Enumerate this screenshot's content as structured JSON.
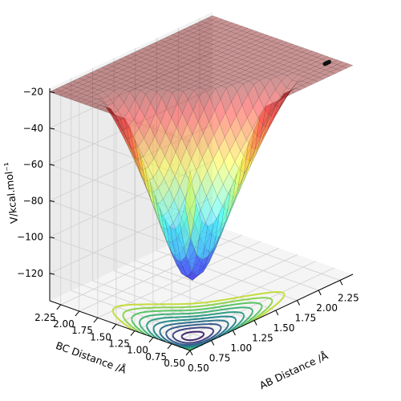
{
  "chart_data": {
    "type": "surface3d",
    "title": "",
    "zlabel": "V/kcal.mol⁻¹",
    "xlabel": "AB Distance /Å",
    "ylabel": "BC Distance /Å",
    "zticks": [
      "−20",
      "−40",
      "−60",
      "−80",
      "−100",
      "−120"
    ],
    "zvalues": [
      -20,
      -40,
      -60,
      -80,
      -100,
      -120
    ],
    "xticks": [
      "0.50",
      "0.75",
      "1.00",
      "1.25",
      "1.50",
      "1.75",
      "2.00",
      "2.25"
    ],
    "xvalues": [
      0.5,
      0.75,
      1.0,
      1.25,
      1.5,
      1.75,
      2.0,
      2.25
    ],
    "yticks": [
      "2.25",
      "2.00",
      "1.75",
      "1.50",
      "1.25",
      "1.00",
      "0.75",
      "0.50"
    ],
    "yvalues": [
      2.25,
      2.0,
      1.75,
      1.5,
      1.25,
      1.0,
      0.75,
      0.5
    ],
    "xlim": [
      0.5,
      2.4
    ],
    "ylim": [
      0.5,
      2.4
    ],
    "zlim": [
      -135,
      -18
    ],
    "surface_function": "LEPS-like potential energy surface (truncated at -20)",
    "minimum_value": -110,
    "colormap_surface": "jet",
    "colormap_contour": "viridis",
    "contour_projection": "floor",
    "grid": true,
    "trajectory_marker": "black points near AB≈2.3 Å, BC≈0.75 Å"
  }
}
